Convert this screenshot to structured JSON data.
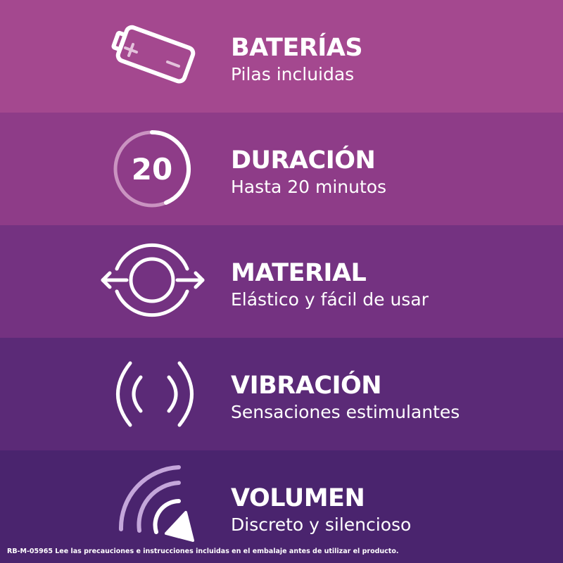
{
  "colors": [
    "#a4488f",
    "#8e3c88",
    "#743281",
    "#5b2a77",
    "#4a246e"
  ],
  "features": [
    {
      "title": "BATERÍAS",
      "subtitle": "Pilas incluidas",
      "icon": "battery-icon"
    },
    {
      "title": "DURACIÓN",
      "subtitle": "Hasta 20 minutos",
      "icon": "timer-20-icon",
      "icon_text": "20"
    },
    {
      "title": "MATERIAL",
      "subtitle": "Elástico y fácil de usar",
      "icon": "stretch-ring-icon"
    },
    {
      "title": "VIBRACIÓN",
      "subtitle": "Sensaciones estimulantes",
      "icon": "vibration-icon"
    },
    {
      "title": "VOLUMEN",
      "subtitle": "Discreto y silencioso",
      "icon": "low-volume-icon"
    }
  ],
  "footer": "RB-M-05965  Lee las precauciones e instrucciones incluidas en el embalaje antes de utilizar el producto."
}
